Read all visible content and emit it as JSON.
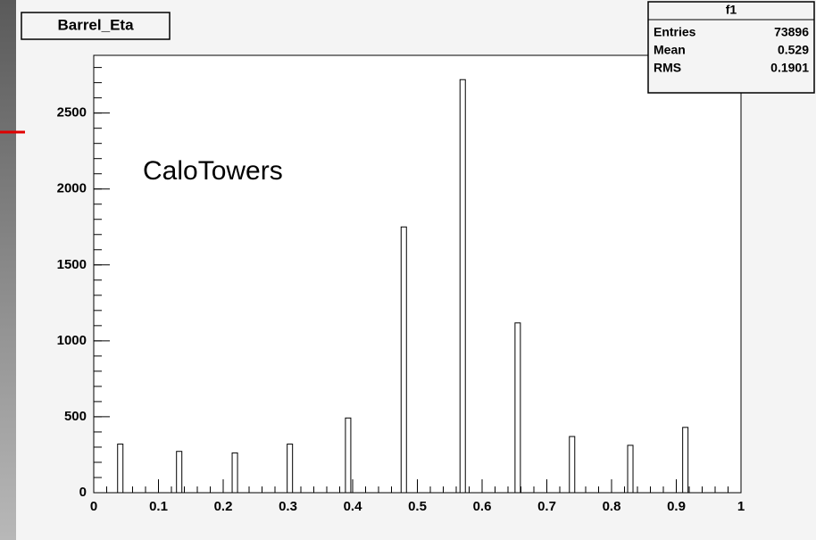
{
  "chart_data": {
    "type": "bar",
    "title": "Barrel_Eta",
    "annotation": "CaloTowers",
    "stats": {
      "title": "f1",
      "rows": [
        {
          "label": "Entries",
          "value": 73896
        },
        {
          "label": "Mean",
          "value": 0.529
        },
        {
          "label": "RMS",
          "value": 0.1901
        }
      ]
    },
    "x": [
      0.041,
      0.132,
      0.218,
      0.303,
      0.393,
      0.479,
      0.57,
      0.655,
      0.739,
      0.829,
      0.914
    ],
    "values": [
      320,
      272,
      262,
      320,
      492,
      1750,
      2720,
      1118,
      370,
      312,
      430
    ],
    "color": "#ffffff",
    "xlim": [
      0,
      1
    ],
    "xticks": [
      0,
      0.1,
      0.2,
      0.3,
      0.4,
      0.5,
      0.6,
      0.7,
      0.8,
      0.9,
      1
    ],
    "ylim": [
      0,
      2880
    ],
    "yticks": [
      0,
      500,
      1000,
      1500,
      2000,
      2500
    ],
    "grid": false
  }
}
